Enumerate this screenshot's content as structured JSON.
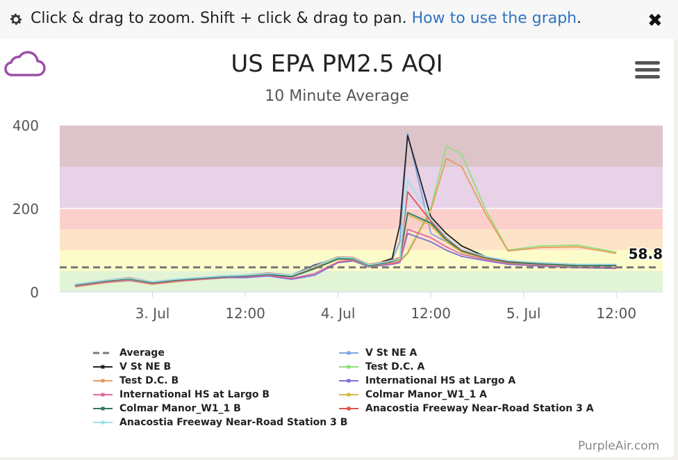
{
  "topbar": {
    "help_text": "Click & drag to zoom. Shift + click & drag to pan.",
    "help_link": "How to use the graph",
    "close_glyph": "✖"
  },
  "brand_color": "#9b4fa6",
  "credit": "PurpleAir.com",
  "chart_data": {
    "type": "line",
    "title": "US EPA PM2.5 AQI",
    "subtitle": "10 Minute Average",
    "ylim": [
      0,
      400
    ],
    "yticks": [
      0,
      200,
      400
    ],
    "xticks": [
      "3. Jul",
      "12:00",
      "4. Jul",
      "12:00",
      "5. Jul",
      "12:00"
    ],
    "x_range_hours": [
      -12,
      66
    ],
    "x_tick_hours": [
      0,
      12,
      24,
      36,
      48,
      60
    ],
    "aqi_bands": [
      {
        "from": 0,
        "to": 50,
        "color": "#e2f4d6"
      },
      {
        "from": 50,
        "to": 100,
        "color": "#fcfccb"
      },
      {
        "from": 100,
        "to": 150,
        "color": "#fde4c8"
      },
      {
        "from": 150,
        "to": 200,
        "color": "#fbd0cb"
      },
      {
        "from": 200,
        "to": 300,
        "color": "#e7d2e7"
      },
      {
        "from": 300,
        "to": 400,
        "color": "#dcc4c9"
      }
    ],
    "average_value": 58.8,
    "average_label": "58.8",
    "series": [
      {
        "name": "Average",
        "color": "#777777",
        "dashed": true,
        "legend_only": true
      },
      {
        "name": "V St NE A",
        "color": "#7aa7e0",
        "y": [
          15,
          25,
          30,
          20,
          28,
          32,
          38,
          40,
          45,
          40,
          65,
          82,
          80,
          62,
          72,
          76,
          120,
          380,
          140,
          120,
          100,
          85,
          72,
          68,
          62,
          65
        ]
      },
      {
        "name": "V St NE B",
        "color": "#222222",
        "y": [
          14,
          24,
          32,
          20,
          27,
          30,
          36,
          40,
          44,
          40,
          64,
          80,
          80,
          60,
          74,
          80,
          160,
          375,
          180,
          140,
          110,
          85,
          72,
          68,
          62,
          64
        ]
      },
      {
        "name": "Test D.C. A",
        "color": "#8fe07a",
        "y": [
          12,
          22,
          28,
          18,
          24,
          30,
          34,
          38,
          42,
          38,
          60,
          80,
          78,
          65,
          70,
          70,
          75,
          95,
          200,
          350,
          330,
          200,
          100,
          110,
          112,
          95
        ]
      },
      {
        "name": "Test D.C. B",
        "color": "#e89b5c",
        "y": [
          12,
          22,
          27,
          18,
          24,
          29,
          33,
          37,
          41,
          37,
          59,
          78,
          76,
          64,
          69,
          69,
          73,
          92,
          195,
          320,
          300,
          190,
          98,
          106,
          108,
          92
        ]
      },
      {
        "name": "International HS at Largo A",
        "color": "#7b6fd8",
        "y": [
          14,
          24,
          28,
          20,
          26,
          30,
          34,
          34,
          38,
          30,
          40,
          70,
          74,
          60,
          64,
          66,
          70,
          140,
          120,
          100,
          85,
          75,
          66,
          62,
          58,
          56
        ]
      },
      {
        "name": "International HS at Largo B",
        "color": "#e2679e",
        "y": [
          14,
          24,
          29,
          20,
          26,
          30,
          35,
          36,
          40,
          32,
          44,
          72,
          76,
          62,
          66,
          68,
          72,
          150,
          130,
          108,
          90,
          78,
          68,
          64,
          60,
          58
        ]
      },
      {
        "name": "Colmar Manor_W1_1 A",
        "color": "#d5b845",
        "y": [
          16,
          26,
          30,
          22,
          28,
          32,
          36,
          38,
          42,
          36,
          55,
          78,
          78,
          62,
          68,
          72,
          78,
          185,
          160,
          120,
          95,
          80,
          70,
          66,
          62,
          62
        ]
      },
      {
        "name": "Colmar Manor_W1_1 B",
        "color": "#2f7766",
        "y": [
          16,
          26,
          31,
          22,
          28,
          32,
          36,
          38,
          42,
          36,
          56,
          79,
          79,
          63,
          69,
          73,
          80,
          190,
          165,
          125,
          98,
          82,
          71,
          67,
          63,
          63
        ]
      },
      {
        "name": "Anacostia Freeway Near-Road Station 3 A",
        "color": "#e05148",
        "y": [
          18,
          28,
          34,
          24,
          30,
          34,
          38,
          40,
          45,
          40,
          62,
          84,
          82,
          66,
          72,
          76,
          82,
          240,
          170,
          130,
          100,
          84,
          74,
          70,
          66,
          66
        ]
      },
      {
        "name": "Anacostia Freeway Near-Road Station 3 B",
        "color": "#9fe0e8",
        "y": [
          18,
          28,
          33,
          24,
          30,
          34,
          38,
          40,
          44,
          40,
          62,
          83,
          81,
          65,
          71,
          75,
          80,
          270,
          175,
          132,
          102,
          85,
          75,
          70,
          66,
          66
        ]
      }
    ],
    "x_hours": [
      -10,
      -6,
      -3,
      0,
      3,
      6,
      9,
      12,
      15,
      18,
      21,
      24,
      26,
      28,
      30,
      31,
      32,
      33,
      36,
      38,
      40,
      43,
      46,
      50,
      55,
      60
    ]
  }
}
